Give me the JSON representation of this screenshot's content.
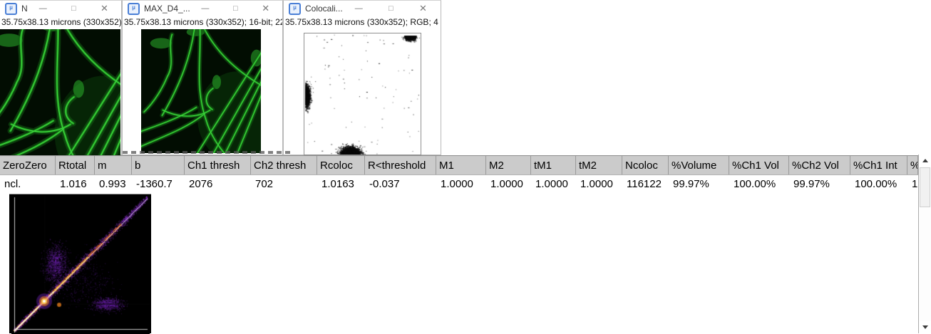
{
  "windows": {
    "window1": {
      "title": "N",
      "subtitle": "35.75x38.13 microns (330x352)"
    },
    "window2": {
      "title": "MAX_D4_...",
      "subtitle": "35.75x38.13 microns (330x352); 16-bit; 22"
    },
    "window3": {
      "title": "Colocali...",
      "subtitle": "35.75x38.13 microns (330x352); RGB; 4"
    }
  },
  "window_controls": {
    "minimize": "—",
    "maximize": "□",
    "close": "✕"
  },
  "icons": {
    "app_badge": "µ"
  },
  "table": {
    "headers": [
      "ZeroZero",
      "Rtotal",
      "m",
      "b",
      "Ch1 thresh",
      "Ch2 thresh",
      "Rcoloc",
      "R<threshold",
      "M1",
      "M2",
      "tM1",
      "tM2",
      "Ncoloc",
      "%Volume",
      "%Ch1 Vol",
      "%Ch2 Vol",
      "%Ch1 Int",
      "%"
    ],
    "row": [
      "ncl.",
      "1.016",
      "0.993",
      "-1360.7",
      "2076",
      "702",
      "1.0163",
      "-0.037",
      "1.0000",
      "1.0000",
      "1.0000",
      "1.0000",
      "116122",
      "99.97%",
      "100.00%",
      "99.97%",
      "100.00%",
      "1"
    ]
  },
  "colors": {
    "table_header_bg": "#cbcbcb",
    "microscopy_green": "#2eb82e",
    "scatter_core": "#ffd24a",
    "scatter_mid": "#ff8c1e",
    "scatter_fringe": "#8a2be2"
  }
}
